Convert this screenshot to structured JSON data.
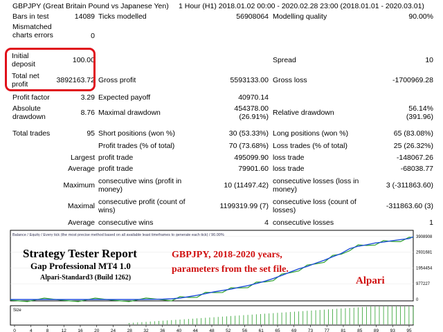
{
  "header": {
    "symbol": "GBPJPY (Great Britain Pound vs Japanese Yen)",
    "period": "1 Hour (H1) 2018.01.02 00:00 - 2020.02.28 23:00 (2018.01.01 - 2020.03.01)"
  },
  "report": {
    "bars_in_test": {
      "label": "Bars in test",
      "value": "14089"
    },
    "ticks_modelled": {
      "label": "Ticks modelled",
      "value": "56908064"
    },
    "modelling_quality": {
      "label": "Modelling quality",
      "value": "90.00%"
    },
    "mismatched": {
      "label": "Mismatched charts errors",
      "value": "0"
    },
    "initial_deposit": {
      "label": "Initial deposit",
      "value": "100.00"
    },
    "spread": {
      "label": "Spread",
      "value": "10"
    },
    "total_net_profit": {
      "label": "Total net profit",
      "value": "3892163.72"
    },
    "gross_profit": {
      "label": "Gross profit",
      "value": "5593133.00"
    },
    "gross_loss": {
      "label": "Gross loss",
      "value": "-1700969.28"
    },
    "profit_factor": {
      "label": "Profit factor",
      "value": "3.29"
    },
    "expected_payoff": {
      "label": "Expected payoff",
      "value": "40970.14"
    },
    "absolute_drawdown": {
      "label": "Absolute drawdown",
      "value": "8.76"
    },
    "maximal_drawdown": {
      "label": "Maximal drawdown",
      "value1": "454378.00",
      "value2": "(26.91%)"
    },
    "relative_drawdown": {
      "label": "Relative drawdown",
      "value1": "56.14%",
      "value2": "(391.96)"
    },
    "total_trades": {
      "label": "Total trades",
      "value": "95"
    },
    "short_positions": {
      "label": "Short positions (won %)",
      "value": "30 (53.33%)"
    },
    "long_positions": {
      "label": "Long positions (won %)",
      "value": "65 (83.08%)"
    },
    "profit_trades": {
      "label": "Profit trades (% of total)",
      "value": "70 (73.68%)"
    },
    "loss_trades": {
      "label": "Loss trades (% of total)",
      "value": "25 (26.32%)"
    },
    "largest": {
      "prefix": "Largest",
      "profit_label": "profit trade",
      "profit_value": "495099.90",
      "loss_label": "loss trade",
      "loss_value": "-148067.26"
    },
    "average": {
      "prefix": "Average",
      "profit_label": "profit trade",
      "profit_value": "79901.60",
      "loss_label": "loss trade",
      "loss_value": "-68038.77"
    },
    "maximum": {
      "prefix": "Maximum",
      "profit_label": "consecutive wins (profit in money)",
      "profit_value": "10 (11497.42)",
      "loss_label": "consecutive losses (loss in money)",
      "loss_value": "3 (-311863.60)"
    },
    "maximal": {
      "prefix": "Maximal",
      "profit_label": "consecutive profit (count of wins)",
      "profit_value": "1199319.99 (7)",
      "loss_label": "consecutive loss (count of losses)",
      "loss_value": "-311863.60 (3)"
    },
    "average2": {
      "prefix": "Average",
      "profit_label": "consecutive wins",
      "profit_value": "4",
      "loss_label": "consecutive losses",
      "loss_value": "1"
    }
  },
  "chart_data": {
    "type": "line",
    "legend": "Balance / Equity / Every tick (the most precise method based on all available least timeframes to generate each tick) / 90.00%",
    "y_ticks": [
      "3908908",
      "2931681",
      "1954454",
      "977227",
      "0"
    ],
    "ylim": [
      0,
      4200000
    ],
    "x_ticks": [
      "0",
      "4",
      "8",
      "12",
      "16",
      "20",
      "24",
      "28",
      "32",
      "36",
      "40",
      "44",
      "48",
      "52",
      "56",
      "61",
      "65",
      "69",
      "73",
      "77",
      "81",
      "85",
      "89",
      "93",
      "95"
    ],
    "size_label": "Size",
    "x": [
      0,
      4,
      8,
      12,
      16,
      20,
      24,
      28,
      32,
      36,
      38,
      40,
      42,
      44,
      46,
      48,
      50,
      52,
      54,
      56,
      58,
      60,
      62,
      64,
      66,
      68,
      70,
      72,
      74,
      76,
      78,
      80,
      82,
      84,
      86,
      88,
      90,
      92,
      94,
      95
    ],
    "balance": [
      100,
      100,
      120,
      150,
      180,
      200,
      300,
      1500,
      6000,
      20000,
      45000,
      90000,
      170000,
      260000,
      360000,
      470000,
      560000,
      640000,
      760000,
      860000,
      990000,
      1130000,
      1300000,
      1490000,
      1700000,
      1900000,
      2050000,
      2250000,
      2430000,
      2650000,
      2850000,
      3150000,
      3300000,
      3390000,
      3500000,
      3560000,
      3640000,
      3710000,
      3770000,
      3892163
    ],
    "overlay": {
      "title": "Strategy Tester Report",
      "subtitle": "Gap Professional MT4 1.0",
      "account": "Alpari-Standard3 (Build 1262)",
      "note_line1": "GBPJPY,  2018-2020 years,",
      "note_line2": "parameters from the set file.",
      "broker": "Alpari"
    },
    "colors": {
      "balance": "#1f4fd8",
      "equity": "#2ca02c",
      "highlight": "#e0101a",
      "overlay_red": "#d01010"
    }
  }
}
